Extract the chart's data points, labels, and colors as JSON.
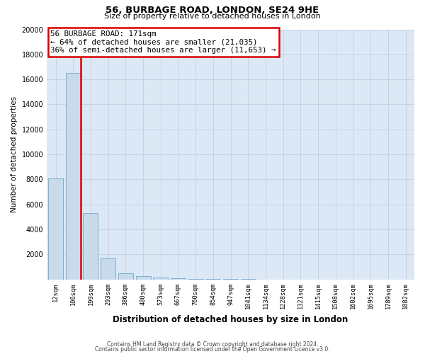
{
  "title": "56, BURBAGE ROAD, LONDON, SE24 9HE",
  "subtitle": "Size of property relative to detached houses in London",
  "xlabel": "Distribution of detached houses by size in London",
  "ylabel": "Number of detached properties",
  "annotation_line1": "56 BURBAGE ROAD: 171sqm",
  "annotation_line2": "← 64% of detached houses are smaller (21,035)",
  "annotation_line3": "36% of semi-detached houses are larger (11,653) →",
  "bar_color": "#c9daea",
  "bar_edge_color": "#7bafd4",
  "red_color": "#dd0000",
  "background_color": "#ffffff",
  "plot_bg_color": "#dce8f5",
  "grid_color": "#b8cfe0",
  "categories": [
    "12sqm",
    "106sqm",
    "199sqm",
    "293sqm",
    "386sqm",
    "480sqm",
    "573sqm",
    "667sqm",
    "760sqm",
    "854sqm",
    "947sqm",
    "1041sqm",
    "1134sqm",
    "1228sqm",
    "1321sqm",
    "1415sqm",
    "1508sqm",
    "1602sqm",
    "1695sqm",
    "1789sqm",
    "1882sqm"
  ],
  "values": [
    8100,
    16500,
    5300,
    1650,
    500,
    280,
    150,
    80,
    40,
    15,
    8,
    4,
    2,
    1,
    1,
    0,
    0,
    0,
    0,
    0,
    0
  ],
  "ylim": [
    0,
    20000
  ],
  "yticks": [
    0,
    2000,
    4000,
    6000,
    8000,
    10000,
    12000,
    14000,
    16000,
    18000,
    20000
  ],
  "red_line_x": 1.42,
  "footer_line1": "Contains HM Land Registry data © Crown copyright and database right 2024.",
  "footer_line2": "Contains public sector information licensed under the Open Government Licence v3.0."
}
